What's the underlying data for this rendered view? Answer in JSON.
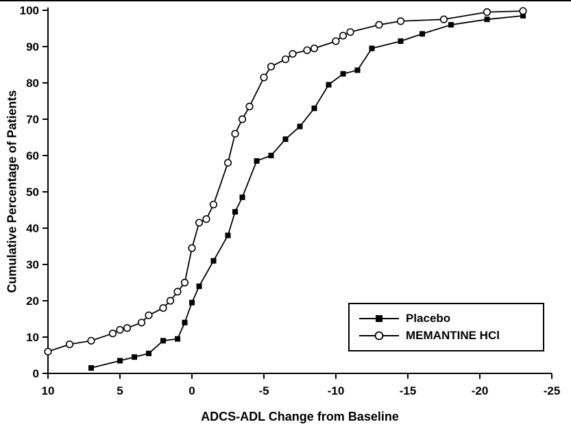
{
  "chart_data": {
    "type": "line",
    "title": "",
    "xlabel": "ADCS-ADL Change from Baseline",
    "ylabel": "Cumulative Percentage of Patients",
    "xlim": [
      10,
      -25
    ],
    "ylim": [
      0,
      100
    ],
    "x_axis_reversed": true,
    "grid": false,
    "x_ticks": [
      10,
      5,
      0,
      -5,
      -10,
      -15,
      -20,
      -25
    ],
    "y_ticks": [
      0,
      10,
      20,
      30,
      40,
      50,
      60,
      70,
      80,
      90,
      100
    ],
    "legend": {
      "position": "lower-right",
      "border": true
    },
    "series": [
      {
        "name": "Placebo",
        "marker": "filled-square",
        "color": "#000000",
        "points": [
          [
            7,
            1.5
          ],
          [
            5,
            3.5
          ],
          [
            4,
            4.5
          ],
          [
            3,
            5.5
          ],
          [
            2,
            9
          ],
          [
            1,
            9.5
          ],
          [
            0.5,
            14
          ],
          [
            0,
            19.5
          ],
          [
            -0.5,
            24
          ],
          [
            -1.5,
            31
          ],
          [
            -2.5,
            38
          ],
          [
            -3,
            44.5
          ],
          [
            -3.5,
            48.5
          ],
          [
            -4.5,
            58.5
          ],
          [
            -5.5,
            60
          ],
          [
            -6.5,
            64.5
          ],
          [
            -7.5,
            68
          ],
          [
            -8.5,
            73
          ],
          [
            -9.5,
            79.5
          ],
          [
            -10.5,
            82.5
          ],
          [
            -11.5,
            83.5
          ],
          [
            -12.5,
            89.5
          ],
          [
            -14.5,
            91.5
          ],
          [
            -16,
            93.5
          ],
          [
            -18,
            96
          ],
          [
            -20.5,
            97.5
          ],
          [
            -23,
            98.5
          ]
        ]
      },
      {
        "name": "MEMANTINE HCl",
        "marker": "open-circle",
        "color": "#000000",
        "points": [
          [
            10,
            6
          ],
          [
            8.5,
            8
          ],
          [
            7,
            9
          ],
          [
            5.5,
            11
          ],
          [
            5,
            12
          ],
          [
            4.5,
            12.5
          ],
          [
            3.5,
            14
          ],
          [
            3,
            16
          ],
          [
            2,
            18
          ],
          [
            1.5,
            20
          ],
          [
            1,
            22.5
          ],
          [
            0.5,
            25
          ],
          [
            0,
            34.5
          ],
          [
            -0.5,
            41.5
          ],
          [
            -1,
            42.5
          ],
          [
            -1.5,
            46.5
          ],
          [
            -2.5,
            58
          ],
          [
            -3,
            66
          ],
          [
            -3.5,
            70
          ],
          [
            -4,
            73.5
          ],
          [
            -5,
            81.5
          ],
          [
            -5.5,
            84.5
          ],
          [
            -6.5,
            86.5
          ],
          [
            -7,
            88
          ],
          [
            -8,
            89
          ],
          [
            -8.5,
            89.5
          ],
          [
            -10,
            91.5
          ],
          [
            -10.5,
            93
          ],
          [
            -11,
            94
          ],
          [
            -13,
            96
          ],
          [
            -14.5,
            97
          ],
          [
            -17.5,
            97.5
          ],
          [
            -20.5,
            99.5
          ],
          [
            -23,
            99.8
          ]
        ]
      }
    ]
  },
  "colors": {
    "line": "#000000",
    "background": "#ffffff"
  }
}
